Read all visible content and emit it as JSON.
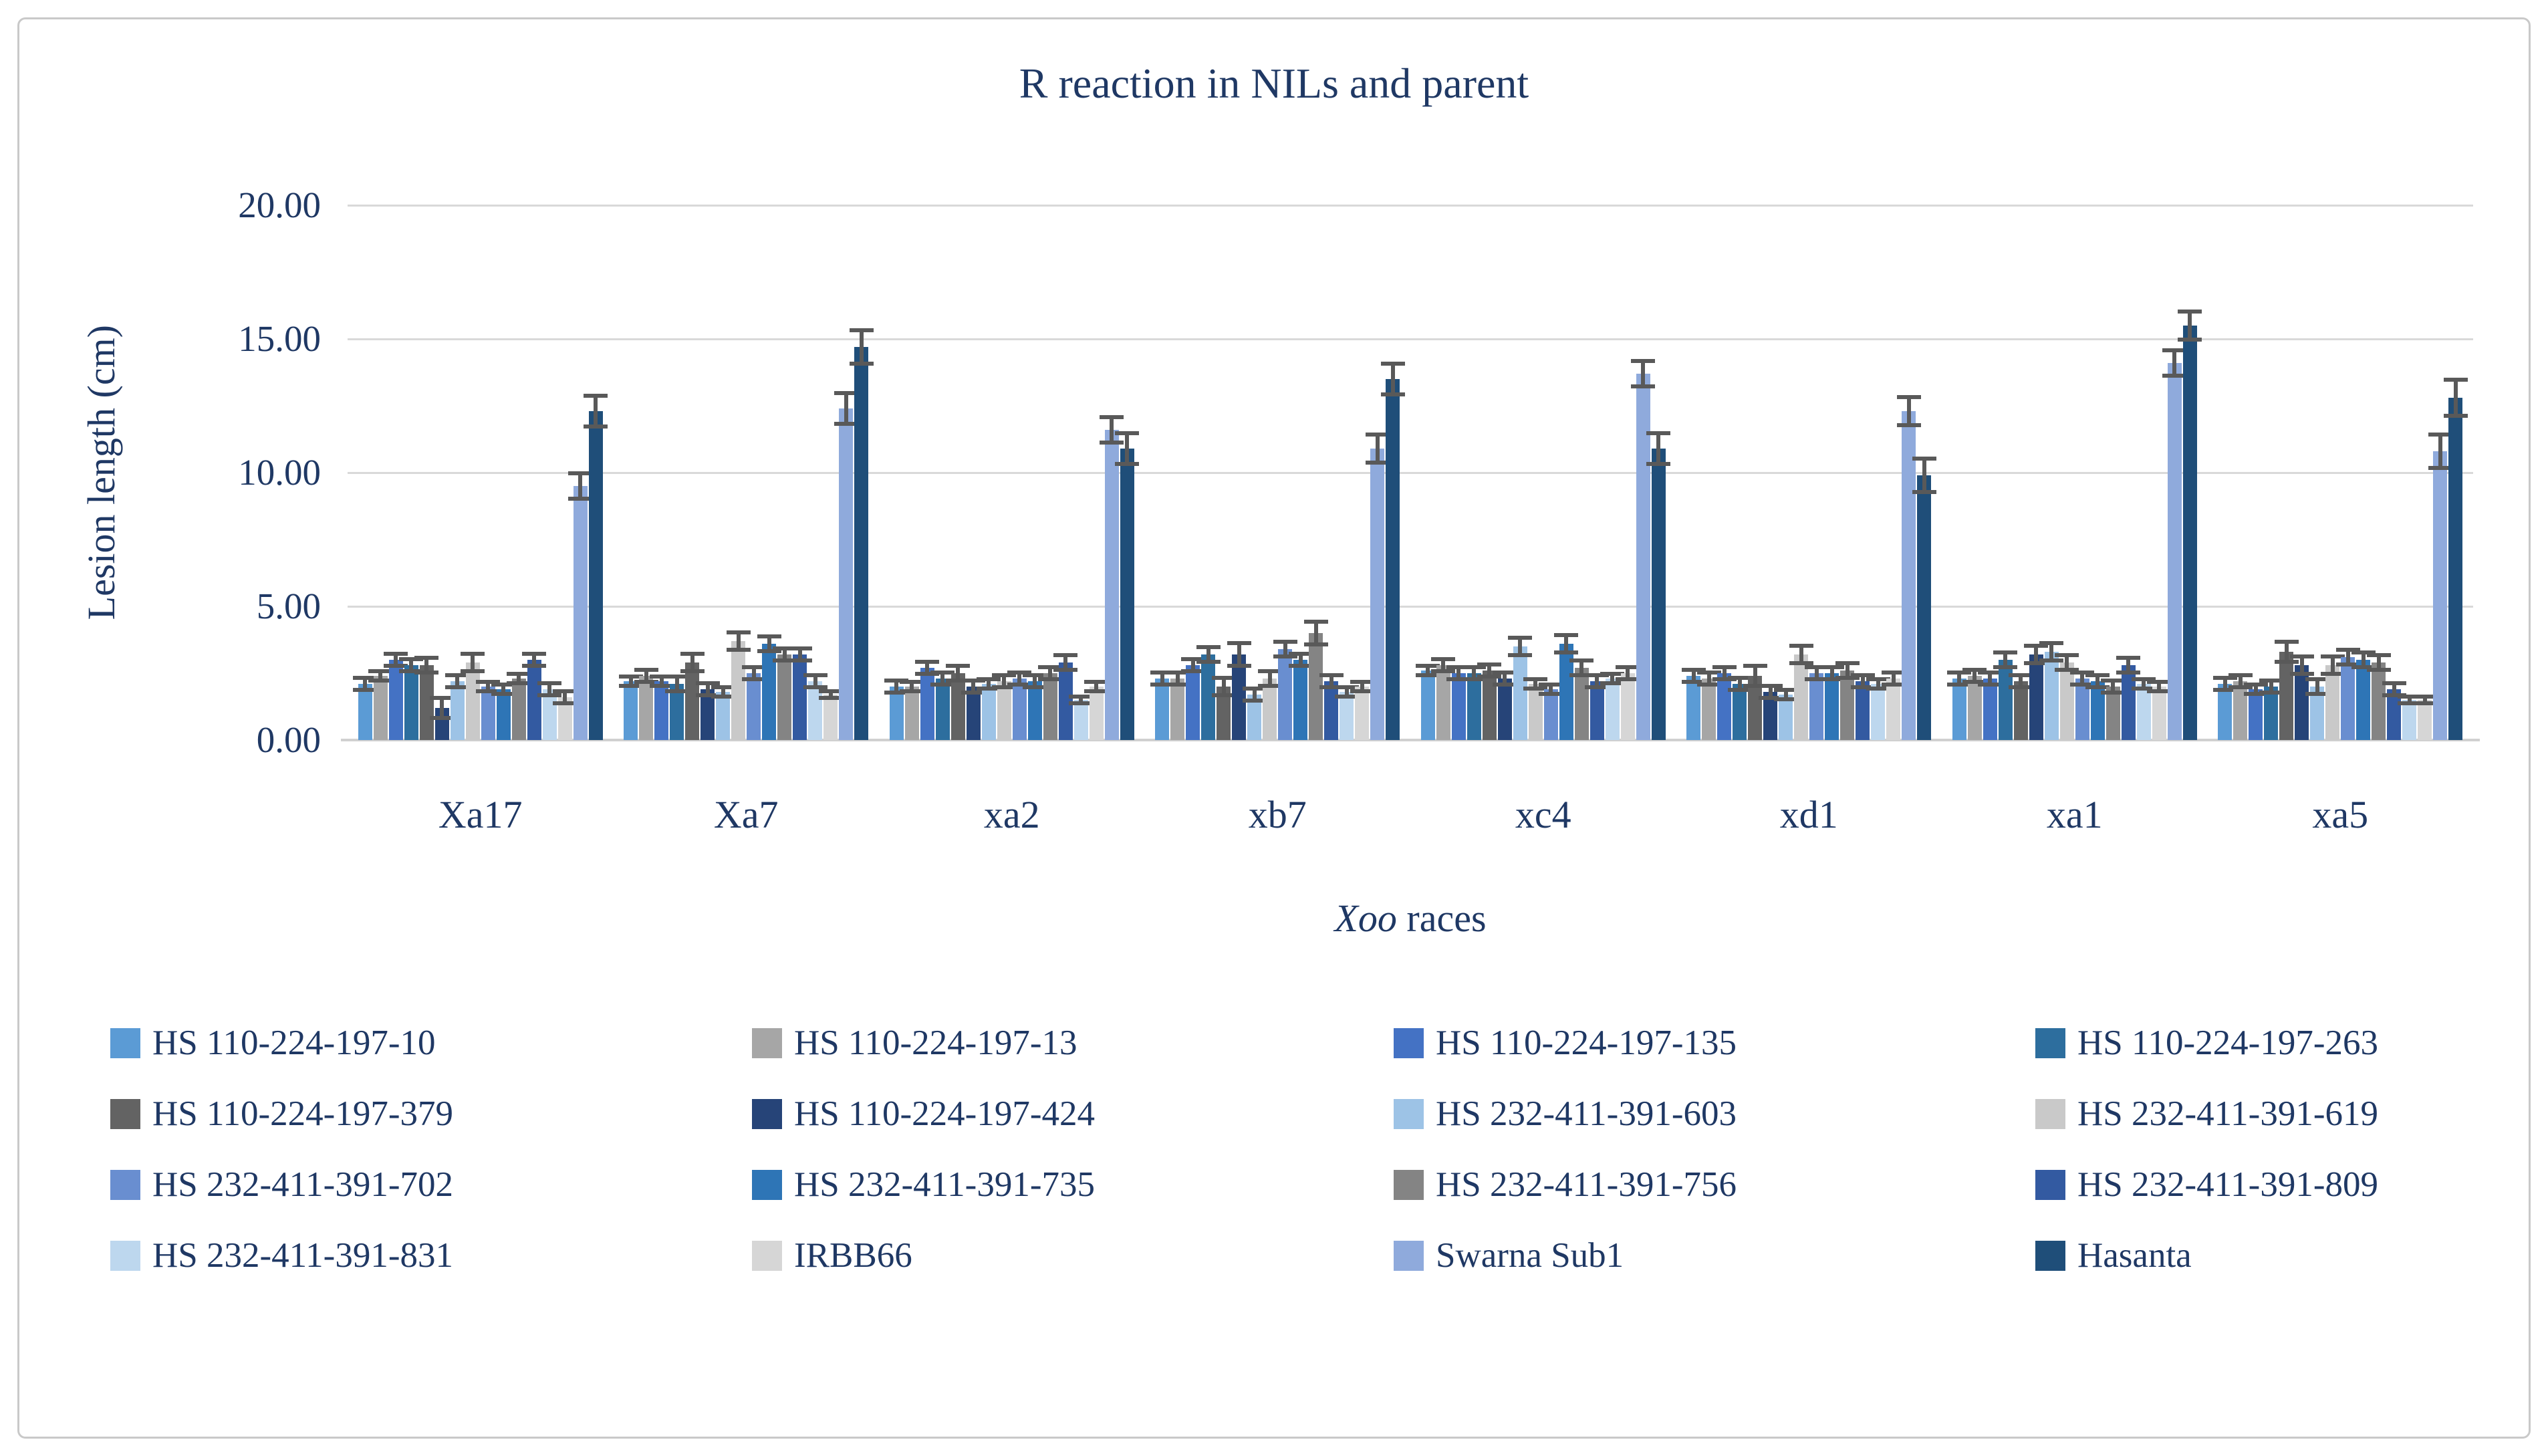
{
  "figure": {
    "title": "R reaction in NILs and parent",
    "y_axis": {
      "title": "Lesion length (cm)",
      "tick_labels": [
        "20.00",
        "15.00",
        "10.00",
        "5.00",
        "0.00"
      ],
      "tick_values": [
        20,
        15,
        10,
        5,
        0
      ]
    },
    "x_axis": {
      "title_italic": "Xoo",
      "title_rest": " races"
    },
    "style_colors": {
      "text": "#1f3864",
      "gridline": "#d9d9d9",
      "axis_line": "#d0d0d0",
      "error_bar": "#595959",
      "frame_border": "#c9c9c9",
      "background": "#ffffff"
    }
  },
  "chart_data": {
    "type": "bar",
    "title": "R reaction in NILs and parent",
    "xlabel": "Xoo races",
    "ylabel": "Lesion length (cm)",
    "ylim": [
      0,
      20
    ],
    "ytick_step": 5,
    "grid": true,
    "error_bars": true,
    "legend_position": "bottom",
    "categories": [
      "Xa17",
      "Xa7",
      "xa2",
      "xb7",
      "xc4",
      "xd1",
      "xa1",
      "xa5"
    ],
    "series": [
      {
        "name": "HS 110-224-197-10",
        "color": "#5B9BD5",
        "values": [
          2.1,
          2.2,
          2.0,
          2.3,
          2.6,
          2.4,
          2.3,
          2.1
        ],
        "errors": [
          0.3,
          0.25,
          0.3,
          0.3,
          0.25,
          0.3,
          0.3,
          0.3
        ]
      },
      {
        "name": "HS 110-224-197-13",
        "color": "#A6A6A6",
        "values": [
          2.4,
          2.4,
          2.0,
          2.3,
          2.8,
          2.3,
          2.4,
          2.2
        ],
        "errors": [
          0.25,
          0.3,
          0.25,
          0.3,
          0.3,
          0.3,
          0.3,
          0.3
        ]
      },
      {
        "name": "HS 110-224-197-135",
        "color": "#4472C4",
        "values": [
          3.0,
          2.2,
          2.7,
          2.8,
          2.5,
          2.5,
          2.3,
          1.9
        ],
        "errors": [
          0.3,
          0.25,
          0.3,
          0.3,
          0.3,
          0.3,
          0.3,
          0.25
        ]
      },
      {
        "name": "HS 110-224-197-263",
        "color": "#2D6E9E",
        "values": [
          2.8,
          2.1,
          2.3,
          3.2,
          2.5,
          2.1,
          3.0,
          2.0
        ],
        "errors": [
          0.3,
          0.35,
          0.3,
          0.35,
          0.3,
          0.3,
          0.35,
          0.3
        ]
      },
      {
        "name": "HS 110-224-197-379",
        "color": "#636363",
        "values": [
          2.8,
          2.9,
          2.5,
          2.0,
          2.6,
          2.4,
          2.2,
          3.3
        ],
        "errors": [
          0.35,
          0.4,
          0.35,
          0.4,
          0.3,
          0.45,
          0.3,
          0.45
        ]
      },
      {
        "name": "HS 110-224-197-424",
        "color": "#264478",
        "values": [
          1.2,
          1.9,
          2.0,
          3.2,
          2.3,
          1.8,
          3.2,
          2.8
        ],
        "errors": [
          0.45,
          0.3,
          0.3,
          0.5,
          0.3,
          0.3,
          0.4,
          0.4
        ]
      },
      {
        "name": "HS 232-411-391-603",
        "color": "#9DC3E6",
        "values": [
          2.2,
          1.8,
          2.1,
          1.7,
          3.5,
          1.7,
          3.3,
          2.0
        ],
        "errors": [
          0.3,
          0.25,
          0.25,
          0.3,
          0.4,
          0.25,
          0.4,
          0.35
        ]
      },
      {
        "name": "HS 232-411-391-619",
        "color": "#C9C9C9",
        "values": [
          2.9,
          3.7,
          2.2,
          2.3,
          2.1,
          3.2,
          2.9,
          2.8
        ],
        "errors": [
          0.4,
          0.4,
          0.3,
          0.35,
          0.25,
          0.4,
          0.35,
          0.4
        ]
      },
      {
        "name": "HS 232-411-391-702",
        "color": "#698ED0",
        "values": [
          2.0,
          2.5,
          2.3,
          3.4,
          1.9,
          2.5,
          2.3,
          3.1
        ],
        "errors": [
          0.25,
          0.3,
          0.3,
          0.35,
          0.25,
          0.3,
          0.3,
          0.35
        ]
      },
      {
        "name": "HS 232-411-391-735",
        "color": "#2E75B6",
        "values": [
          1.9,
          3.6,
          2.2,
          3.0,
          3.6,
          2.5,
          2.2,
          3.0
        ],
        "errors": [
          0.25,
          0.35,
          0.3,
          0.3,
          0.4,
          0.3,
          0.3,
          0.35
        ]
      },
      {
        "name": "HS 232-411-391-756",
        "color": "#848484",
        "values": [
          2.3,
          3.2,
          2.5,
          4.0,
          2.7,
          2.6,
          2.0,
          2.9
        ],
        "errors": [
          0.25,
          0.3,
          0.3,
          0.5,
          0.35,
          0.35,
          0.3,
          0.35
        ]
      },
      {
        "name": "HS 232-411-391-809",
        "color": "#335AA1",
        "values": [
          3.0,
          3.2,
          2.9,
          2.2,
          2.2,
          2.2,
          2.8,
          1.9
        ],
        "errors": [
          0.3,
          0.3,
          0.35,
          0.3,
          0.3,
          0.3,
          0.35,
          0.3
        ]
      },
      {
        "name": "HS 232-411-391-831",
        "color": "#BDD7EE",
        "values": [
          1.9,
          2.2,
          1.5,
          1.8,
          2.3,
          2.1,
          2.1,
          1.5
        ],
        "errors": [
          0.3,
          0.3,
          0.2,
          0.25,
          0.25,
          0.25,
          0.25,
          0.2
        ]
      },
      {
        "name": "IRBB66",
        "color": "#D6D6D6",
        "values": [
          1.6,
          1.7,
          2.0,
          2.0,
          2.5,
          2.3,
          2.0,
          1.5
        ],
        "errors": [
          0.3,
          0.2,
          0.25,
          0.25,
          0.3,
          0.3,
          0.25,
          0.2
        ]
      },
      {
        "name": "Swarna Sub1",
        "color": "#8FAADC",
        "values": [
          9.5,
          12.4,
          11.6,
          10.9,
          13.7,
          12.3,
          14.1,
          10.8
        ],
        "errors": [
          0.55,
          0.65,
          0.55,
          0.6,
          0.55,
          0.6,
          0.55,
          0.7
        ]
      },
      {
        "name": "Hasanta",
        "color": "#1F4E79",
        "values": [
          12.3,
          14.7,
          10.9,
          13.5,
          10.9,
          9.9,
          15.5,
          12.8
        ],
        "errors": [
          0.65,
          0.7,
          0.65,
          0.65,
          0.65,
          0.7,
          0.6,
          0.75
        ]
      }
    ]
  }
}
